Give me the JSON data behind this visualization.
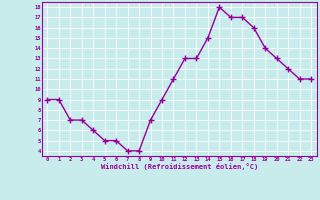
{
  "x": [
    0,
    1,
    2,
    3,
    4,
    5,
    6,
    7,
    8,
    9,
    10,
    11,
    12,
    13,
    14,
    15,
    16,
    17,
    18,
    19,
    20,
    21,
    22,
    23
  ],
  "y": [
    9,
    9,
    7,
    7,
    6,
    5,
    5,
    4,
    4,
    7,
    9,
    11,
    13,
    13,
    15,
    18,
    17,
    17,
    16,
    14,
    13,
    12,
    11,
    11
  ],
  "line_color": "#990099",
  "marker": "+",
  "marker_color": "#990099",
  "background_color": "#c8ecec",
  "grid_color": "#b0dada",
  "xlabel": "Windchill (Refroidissement éolien,°C)",
  "xlabel_color": "#990099",
  "tick_color": "#990099",
  "ylim": [
    3.5,
    18.5
  ],
  "xlim": [
    -0.5,
    23.5
  ],
  "yticks": [
    4,
    5,
    6,
    7,
    8,
    9,
    10,
    11,
    12,
    13,
    14,
    15,
    16,
    17,
    18
  ],
  "xticks": [
    0,
    1,
    2,
    3,
    4,
    5,
    6,
    7,
    8,
    9,
    10,
    11,
    12,
    13,
    14,
    15,
    16,
    17,
    18,
    19,
    20,
    21,
    22,
    23
  ],
  "xtick_labels": [
    "0",
    "1",
    "2",
    "3",
    "4",
    "5",
    "6",
    "7",
    "8",
    "9",
    "10",
    "11",
    "12",
    "13",
    "14",
    "15",
    "16",
    "17",
    "18",
    "19",
    "20",
    "21",
    "22",
    "23"
  ],
  "ytick_labels": [
    "4",
    "5",
    "6",
    "7",
    "8",
    "9",
    "10",
    "11",
    "12",
    "13",
    "14",
    "15",
    "16",
    "17",
    "18"
  ],
  "spine_color": "#990099",
  "linewidth": 1.0,
  "markersize": 4
}
